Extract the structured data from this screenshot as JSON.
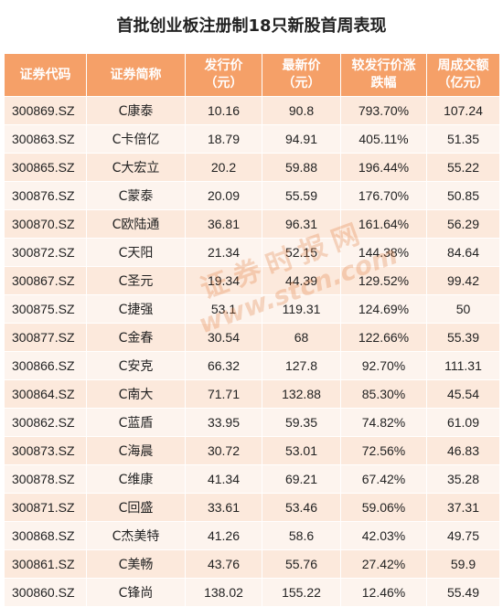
{
  "title": "首批创业板注册制18只新股首周表现",
  "watermark": {
    "line1": "证券时报网",
    "line2": "www.stcn.com"
  },
  "chart_data": {
    "type": "table",
    "title": "首批创业板注册制18只新股首周表现",
    "columns": [
      {
        "label1": "证券代码",
        "label2": ""
      },
      {
        "label1": "证券简称",
        "label2": ""
      },
      {
        "label1": "发行价",
        "label2": "（元）"
      },
      {
        "label1": "最新价",
        "label2": "（元）"
      },
      {
        "label1": "较发行价涨",
        "label2": "跌幅"
      },
      {
        "label1": "周成交额",
        "label2": "（亿元）"
      }
    ],
    "rows": [
      [
        "300869.SZ",
        "C康泰",
        "10.16",
        "90.8",
        "793.70%",
        "107.24"
      ],
      [
        "300863.SZ",
        "C卡倍亿",
        "18.79",
        "94.91",
        "405.11%",
        "51.35"
      ],
      [
        "300865.SZ",
        "C大宏立",
        "20.2",
        "59.88",
        "196.44%",
        "55.22"
      ],
      [
        "300876.SZ",
        "C蒙泰",
        "20.09",
        "55.59",
        "176.70%",
        "50.85"
      ],
      [
        "300870.SZ",
        "C欧陆通",
        "36.81",
        "96.31",
        "161.64%",
        "56.29"
      ],
      [
        "300872.SZ",
        "C天阳",
        "21.34",
        "52.15",
        "144.38%",
        "84.64"
      ],
      [
        "300867.SZ",
        "C圣元",
        "19.34",
        "44.39",
        "129.52%",
        "99.42"
      ],
      [
        "300875.SZ",
        "C捷强",
        "53.1",
        "119.31",
        "124.69%",
        "50"
      ],
      [
        "300877.SZ",
        "C金春",
        "30.54",
        "68",
        "122.66%",
        "55.39"
      ],
      [
        "300866.SZ",
        "C安克",
        "66.32",
        "127.8",
        "92.70%",
        "111.31"
      ],
      [
        "300864.SZ",
        "C南大",
        "71.71",
        "132.88",
        "85.30%",
        "45.54"
      ],
      [
        "300862.SZ",
        "C蓝盾",
        "33.95",
        "59.35",
        "74.82%",
        "61.09"
      ],
      [
        "300873.SZ",
        "C海晨",
        "30.72",
        "53.01",
        "72.56%",
        "46.83"
      ],
      [
        "300878.SZ",
        "C维康",
        "41.34",
        "69.21",
        "67.42%",
        "35.28"
      ],
      [
        "300871.SZ",
        "C回盛",
        "33.61",
        "53.46",
        "59.06%",
        "37.31"
      ],
      [
        "300868.SZ",
        "C杰美特",
        "41.26",
        "58.6",
        "42.03%",
        "49.75"
      ],
      [
        "300861.SZ",
        "C美畅",
        "43.76",
        "55.76",
        "27.42%",
        "59.9"
      ],
      [
        "300860.SZ",
        "C锋尚",
        "138.02",
        "155.22",
        "12.46%",
        "55.49"
      ]
    ],
    "colors": {
      "header_bg": "#f5a068",
      "header_text": "#ffffff",
      "row_odd": "#fce9dc",
      "row_even": "#fdf4ee"
    }
  }
}
